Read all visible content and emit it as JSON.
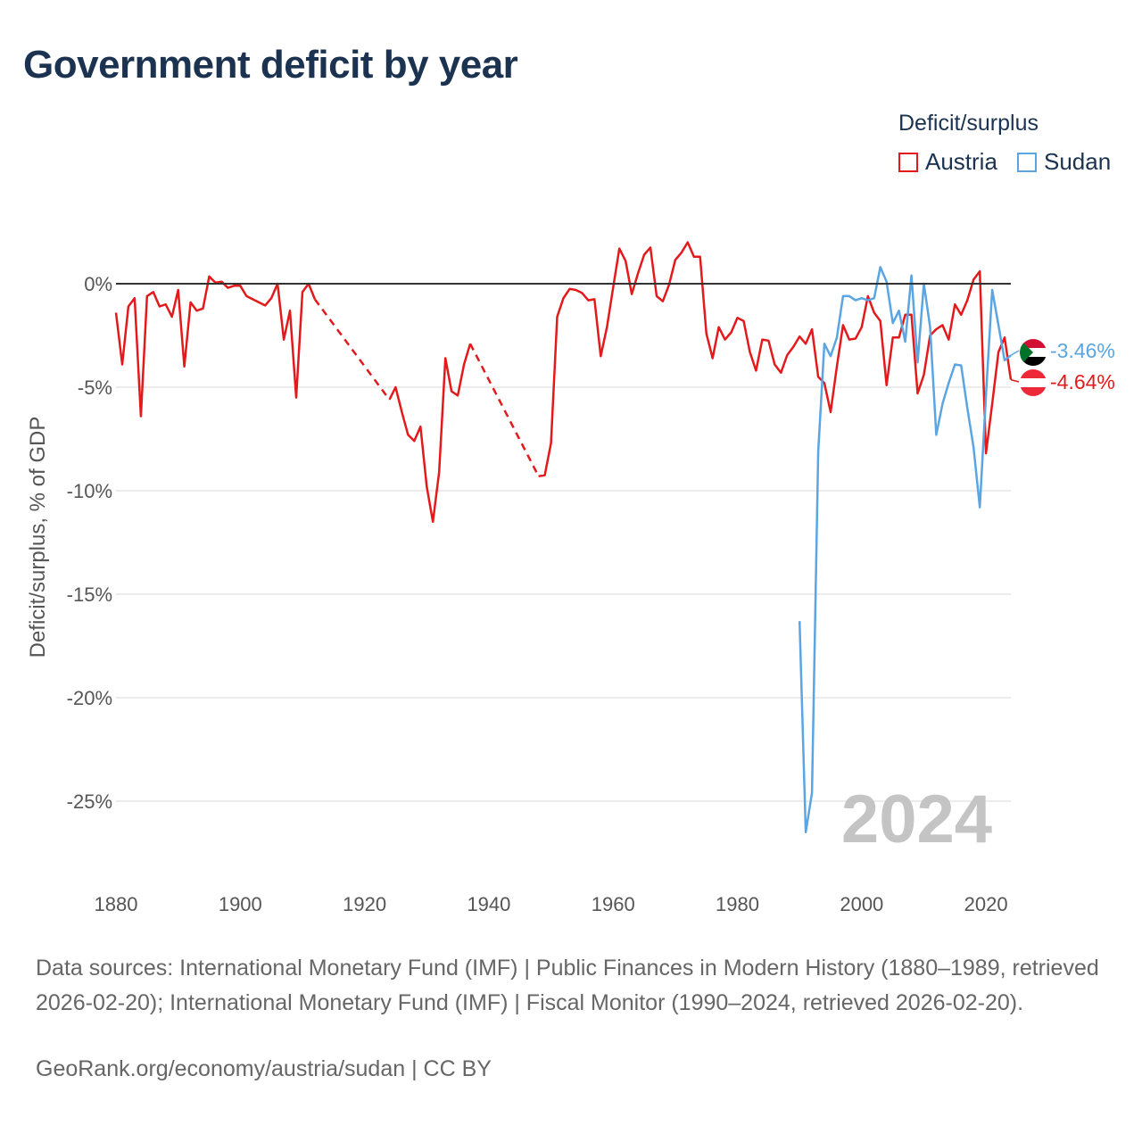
{
  "title": "Government deficit by year",
  "legend": {
    "title": "Deficit/surplus",
    "items": [
      {
        "name": "Austria",
        "color": "#e31a1c"
      },
      {
        "name": "Sudan",
        "color": "#5aa5e2"
      }
    ]
  },
  "footer": {
    "sources": "Data sources: International Monetary Fund (IMF) | Public Finances in Modern History (1880–1989, retrieved 2026-02-20); International Monetary Fund (IMF) | Fiscal Monitor (1990–2024, retrieved 2026-02-20).",
    "link": "GeoRank.org/economy/austria/sudan | CC BY"
  },
  "chart_data": {
    "type": "line",
    "title": "Government deficit by year",
    "xlabel": "",
    "ylabel": "Deficit/surplus, % of GDP",
    "xlim": [
      1880,
      2024
    ],
    "ylim": [
      -27,
      2.5
    ],
    "x_ticks": [
      1880,
      1900,
      1920,
      1940,
      1960,
      1980,
      2000,
      2020
    ],
    "y_ticks": [
      0,
      -5,
      -10,
      -15,
      -20,
      -25
    ],
    "y_tick_labels": [
      "0%",
      "-5%",
      "-10%",
      "-15%",
      "-20%",
      "-25%"
    ],
    "watermark_year": "2024",
    "series": [
      {
        "name": "Austria",
        "color": "#e31a1c",
        "end_label": "-4.64%",
        "points": [
          [
            1880,
            -1.4
          ],
          [
            1881,
            -3.9
          ],
          [
            1882,
            -1.1
          ],
          [
            1883,
            -0.7
          ],
          [
            1884,
            -6.4
          ],
          [
            1885,
            -0.6
          ],
          [
            1886,
            -0.4
          ],
          [
            1887,
            -1.1
          ],
          [
            1888,
            -1.0
          ],
          [
            1889,
            -1.6
          ],
          [
            1890,
            -0.3
          ],
          [
            1891,
            -4.0
          ],
          [
            1892,
            -0.9
          ],
          [
            1893,
            -1.3
          ],
          [
            1894,
            -1.2
          ],
          [
            1895,
            0.35
          ],
          [
            1896,
            0.05
          ],
          [
            1897,
            0.1
          ],
          [
            1898,
            -0.2
          ],
          [
            1899,
            -0.1
          ],
          [
            1900,
            -0.1
          ],
          [
            1901,
            -0.6
          ],
          [
            1902,
            -0.75
          ],
          [
            1903,
            -0.9
          ],
          [
            1904,
            -1.05
          ],
          [
            1905,
            -0.7
          ],
          [
            1906,
            0.0
          ],
          [
            1907,
            -2.7
          ],
          [
            1908,
            -1.3
          ],
          [
            1909,
            -5.5
          ],
          [
            1910,
            -0.4
          ],
          [
            1911,
            0.0
          ],
          [
            1912,
            -0.75
          ],
          [
            1924,
            -5.6
          ],
          [
            1925,
            -5.0
          ],
          [
            1926,
            -6.2
          ],
          [
            1927,
            -7.3
          ],
          [
            1928,
            -7.6
          ],
          [
            1929,
            -6.9
          ],
          [
            1930,
            -9.8
          ],
          [
            1931,
            -11.5
          ],
          [
            1932,
            -9.1
          ],
          [
            1933,
            -3.6
          ],
          [
            1934,
            -5.2
          ],
          [
            1935,
            -5.4
          ],
          [
            1936,
            -3.9
          ],
          [
            1937,
            -2.9
          ],
          [
            1948,
            -9.3
          ],
          [
            1949,
            -9.25
          ],
          [
            1950,
            -7.7
          ],
          [
            1951,
            -1.6
          ],
          [
            1952,
            -0.7
          ],
          [
            1953,
            -0.25
          ],
          [
            1954,
            -0.3
          ],
          [
            1955,
            -0.45
          ],
          [
            1956,
            -0.8
          ],
          [
            1957,
            -0.75
          ],
          [
            1958,
            -3.5
          ],
          [
            1959,
            -2.1
          ],
          [
            1960,
            -0.2
          ],
          [
            1961,
            1.7
          ],
          [
            1962,
            1.1
          ],
          [
            1963,
            -0.5
          ],
          [
            1964,
            0.5
          ],
          [
            1965,
            1.4
          ],
          [
            1966,
            1.75
          ],
          [
            1967,
            -0.6
          ],
          [
            1968,
            -0.85
          ],
          [
            1969,
            -0.05
          ],
          [
            1970,
            1.15
          ],
          [
            1971,
            1.5
          ],
          [
            1972,
            2.0
          ],
          [
            1973,
            1.3
          ],
          [
            1974,
            1.3
          ],
          [
            1975,
            -2.4
          ],
          [
            1976,
            -3.6
          ],
          [
            1977,
            -2.1
          ],
          [
            1978,
            -2.7
          ],
          [
            1979,
            -2.35
          ],
          [
            1980,
            -1.65
          ],
          [
            1981,
            -1.8
          ],
          [
            1982,
            -3.3
          ],
          [
            1983,
            -4.2
          ],
          [
            1984,
            -2.7
          ],
          [
            1985,
            -2.75
          ],
          [
            1986,
            -3.9
          ],
          [
            1987,
            -4.3
          ],
          [
            1988,
            -3.45
          ],
          [
            1989,
            -3.05
          ],
          [
            1990,
            -2.55
          ],
          [
            1991,
            -2.9
          ],
          [
            1992,
            -2.2
          ],
          [
            1993,
            -4.5
          ],
          [
            1994,
            -4.8
          ],
          [
            1995,
            -6.2
          ],
          [
            1996,
            -4.0
          ],
          [
            1997,
            -2.0
          ],
          [
            1998,
            -2.7
          ],
          [
            1999,
            -2.65
          ],
          [
            2000,
            -2.1
          ],
          [
            2001,
            -0.6
          ],
          [
            2002,
            -1.4
          ],
          [
            2003,
            -1.8
          ],
          [
            2004,
            -4.9
          ],
          [
            2005,
            -2.6
          ],
          [
            2006,
            -2.6
          ],
          [
            2007,
            -1.5
          ],
          [
            2008,
            -1.5
          ],
          [
            2009,
            -5.3
          ],
          [
            2010,
            -4.4
          ],
          [
            2011,
            -2.5
          ],
          [
            2012,
            -2.2
          ],
          [
            2013,
            -2.0
          ],
          [
            2014,
            -2.7
          ],
          [
            2015,
            -1.0
          ],
          [
            2016,
            -1.5
          ],
          [
            2017,
            -0.8
          ],
          [
            2018,
            0.2
          ],
          [
            2019,
            0.6
          ],
          [
            2020,
            -8.2
          ],
          [
            2021,
            -5.8
          ],
          [
            2022,
            -3.3
          ],
          [
            2023,
            -2.6
          ],
          [
            2024,
            -4.64
          ]
        ],
        "dashed_gaps": [
          [
            1912,
            1924
          ],
          [
            1937,
            1948
          ]
        ]
      },
      {
        "name": "Sudan",
        "color": "#5aa5e2",
        "end_label": "-3.46%",
        "points": [
          [
            1990,
            -16.3
          ],
          [
            1991,
            -26.5
          ],
          [
            1992,
            -24.6
          ],
          [
            1993,
            -8.1
          ],
          [
            1994,
            -2.9
          ],
          [
            1995,
            -3.5
          ],
          [
            1996,
            -2.6
          ],
          [
            1997,
            -0.6
          ],
          [
            1998,
            -0.6
          ],
          [
            1999,
            -0.8
          ],
          [
            2000,
            -0.7
          ],
          [
            2001,
            -0.8
          ],
          [
            2002,
            -0.7
          ],
          [
            2003,
            0.8
          ],
          [
            2004,
            0.1
          ],
          [
            2005,
            -1.9
          ],
          [
            2006,
            -1.3
          ],
          [
            2007,
            -2.8
          ],
          [
            2008,
            0.4
          ],
          [
            2009,
            -3.8
          ],
          [
            2010,
            0.0
          ],
          [
            2011,
            -2.1
          ],
          [
            2012,
            -7.3
          ],
          [
            2013,
            -5.8
          ],
          [
            2014,
            -4.8
          ],
          [
            2015,
            -3.9
          ],
          [
            2016,
            -3.95
          ],
          [
            2017,
            -6.0
          ],
          [
            2018,
            -7.9
          ],
          [
            2019,
            -10.8
          ],
          [
            2020,
            -5.4
          ],
          [
            2021,
            -0.3
          ],
          [
            2022,
            -2.0
          ],
          [
            2023,
            -3.7
          ],
          [
            2024,
            -3.46
          ]
        ]
      }
    ]
  }
}
